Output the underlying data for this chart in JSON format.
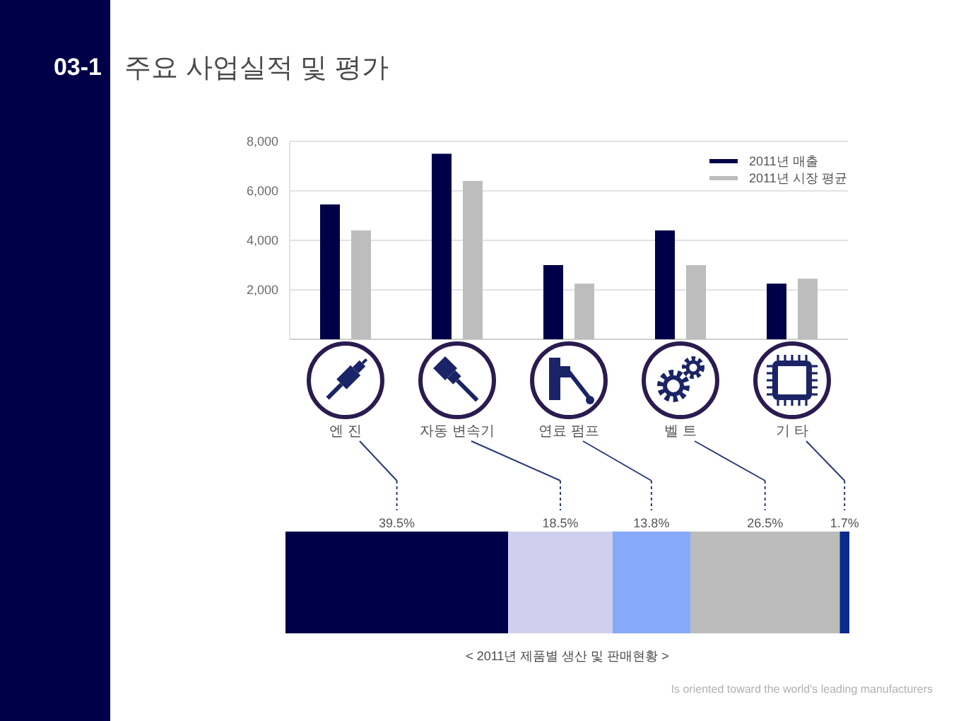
{
  "chart_data": [
    {
      "type": "bar",
      "title": "주요 사업실적 및 평가",
      "annotations": [
        "03-1"
      ],
      "categories": [
        "엔 진",
        "자동 변속기",
        "연료 펌프",
        "벨 트",
        "기 타"
      ],
      "series": [
        {
          "name": "2011년 매출",
          "color": "#000048",
          "values": [
            5450,
            7500,
            3000,
            4400,
            2250
          ]
        },
        {
          "name": "2011년 시장 평균",
          "color": "#bdbdbd",
          "values": [
            4400,
            6400,
            2250,
            3000,
            2450
          ]
        }
      ],
      "ylim": [
        0,
        8000
      ],
      "yticks": [
        {
          "value": 2000,
          "label": "2,000"
        },
        {
          "value": 4000,
          "label": "4,000"
        },
        {
          "value": 6000,
          "label": "6,000"
        },
        {
          "value": 8000,
          "label": "8,000"
        }
      ],
      "grid": "y",
      "legend": "top right"
    },
    {
      "type": "bar",
      "orientation": "horizontal",
      "stacked": true,
      "title": "< 2011년 제품별 생산 및 판매현황 >",
      "annotations": [
        "Is oriented toward the world's leading manufacturers"
      ],
      "categories": [
        null
      ],
      "series": [
        {
          "color": "#000048",
          "values": [
            39.5
          ],
          "value_labels": [
            "39.5%"
          ]
        },
        {
          "color": "#d0d0ee",
          "values": [
            18.5
          ],
          "value_labels": [
            "18.5%"
          ]
        },
        {
          "color": "#86aaf7",
          "values": [
            13.8
          ],
          "value_labels": [
            "13.8%"
          ]
        },
        {
          "color": "#bcbcbc",
          "values": [
            26.5
          ],
          "value_labels": [
            "26.5%"
          ]
        },
        {
          "color": "#0a2a8c",
          "values": [
            1.7
          ],
          "value_labels": [
            "1.7%"
          ]
        }
      ]
    }
  ]
}
